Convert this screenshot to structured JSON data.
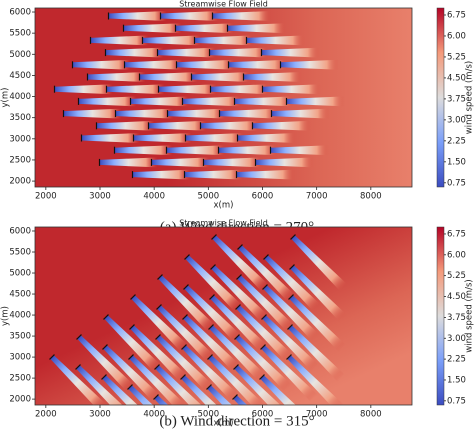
{
  "chart_data": [
    {
      "type": "field",
      "title": "Streamwise Flow Field",
      "xlabel": "x(m)",
      "ylabel": "y(m)",
      "xlim": [
        1800,
        8760
      ],
      "ylim": [
        1860,
        6095
      ],
      "xticks": [
        2000,
        3000,
        4000,
        5000,
        6000,
        7000,
        8000
      ],
      "yticks": [
        2000,
        2500,
        3000,
        3500,
        4000,
        4500,
        5000,
        5500,
        6000
      ],
      "wind_direction": 270,
      "colorbar": {
        "label": "wind speed (m/s)",
        "lim": [
          0.6,
          7.0
        ],
        "ticks": [
          6.75,
          {
            "value": 6,
            "label": "6.00"
          },
          5.25,
          {
            "value": 4.5,
            "label": "4.50"
          },
          3.75,
          {
            "value": 3,
            "label": "3.00"
          },
          2.25,
          {
            "value": 1.5,
            "label": "1.50"
          },
          0.75
        ]
      },
      "caption": "(a)  Wind direction = 270°"
    },
    {
      "type": "field",
      "title": "Streamwise Flow Field",
      "xlabel": "x(m)",
      "ylabel": "y(m)",
      "xlim": [
        1800,
        8760
      ],
      "ylim": [
        1860,
        6095
      ],
      "xticks": [
        2000,
        3000,
        4000,
        5000,
        6000,
        7000,
        8000
      ],
      "yticks": [
        2000,
        2500,
        3000,
        3500,
        4000,
        4500,
        5000,
        5500,
        6000
      ],
      "wind_direction": 315,
      "colorbar": {
        "label": "wind speed (m/s)",
        "lim": [
          0.6,
          7.0
        ],
        "ticks": [
          6.75,
          {
            "value": 6,
            "label": "6.00"
          },
          5.25,
          {
            "value": 4.5,
            "label": "4.50"
          },
          3.75,
          {
            "value": 3,
            "label": "3.00"
          },
          2.25,
          {
            "value": 1.5,
            "label": "1.50"
          },
          0.75
        ]
      },
      "caption": "(b)  Wind direction = 315°"
    }
  ]
}
